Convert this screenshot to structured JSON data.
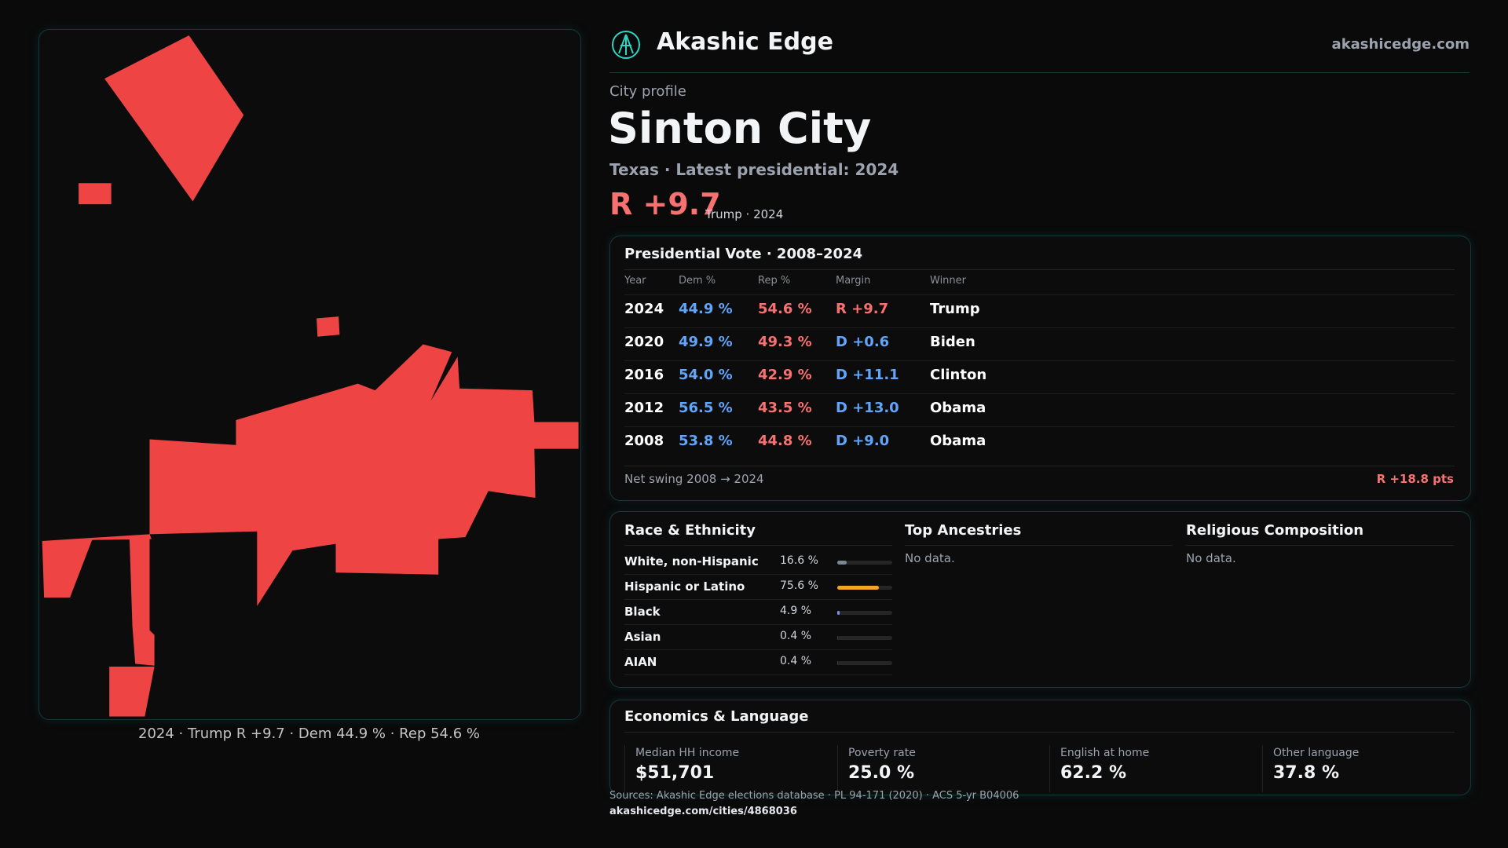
{
  "header": {
    "brand": "Akashic Edge",
    "site": "akashicedge.com"
  },
  "profile": {
    "kicker": "City profile",
    "name": "Sinton City",
    "subtitle": "Texas · Latest presidential: 2024",
    "margin": "R +9.7",
    "margin_note": "Trump · 2024"
  },
  "map": {
    "caption": "2024 · Trump R +9.7 · Dem 44.9 % · Rep 54.6 %"
  },
  "vote_table": {
    "title": "Presidential Vote · 2008–2024",
    "columns": [
      "Year",
      "Dem %",
      "Rep %",
      "Margin",
      "Winner"
    ],
    "rows": [
      [
        "2024",
        "44.9 %",
        "54.6 %",
        "R +9.7",
        "Trump"
      ],
      [
        "2020",
        "49.9 %",
        "49.3 %",
        "D +0.6",
        "Biden"
      ],
      [
        "2016",
        "54.0 %",
        "42.9 %",
        "D +11.1",
        "Clinton"
      ],
      [
        "2012",
        "56.5 %",
        "43.5 %",
        "D +13.0",
        "Obama"
      ],
      [
        "2008",
        "53.8 %",
        "44.8 %",
        "D +9.0",
        "Obama"
      ]
    ],
    "footer": {
      "label": "Net swing 2008 → 2024",
      "value": "R +18.8 pts"
    }
  },
  "race": {
    "title": "Race & Ethnicity",
    "rows": [
      {
        "label": "White, non-Hispanic",
        "value": 16.6,
        "value_label": "16.6 %",
        "color": "#7b8794"
      },
      {
        "label": "Hispanic or Latino",
        "value": 75.6,
        "value_label": "75.6 %",
        "color": "#f5a524"
      },
      {
        "label": "Black",
        "value": 4.9,
        "value_label": "4.9 %",
        "color": "#818cf8"
      },
      {
        "label": "Asian",
        "value": 0.4,
        "value_label": "0.4 %",
        "color": "#3a3a3a"
      },
      {
        "label": "AIAN",
        "value": 0.4,
        "value_label": "0.4 %",
        "color": "#3a3a3a"
      }
    ]
  },
  "ancestries": {
    "title": "Top Ancestries",
    "note": "No data."
  },
  "religion": {
    "title": "Religious Composition",
    "note": "No data."
  },
  "economics": {
    "title": "Economics & Language",
    "cells": [
      {
        "label": "Median HH income",
        "value": "$51,701"
      },
      {
        "label": "Poverty rate",
        "value": "25.0 %"
      },
      {
        "label": "English at home",
        "value": "62.2 %"
      },
      {
        "label": "Other language",
        "value": "37.8 %"
      }
    ]
  },
  "sources": {
    "text": "Sources: Akashic Edge elections database · PL 94-171 (2020) · ACS 5-yr B04006",
    "url": "akashicedge.com/cities/4868036"
  }
}
